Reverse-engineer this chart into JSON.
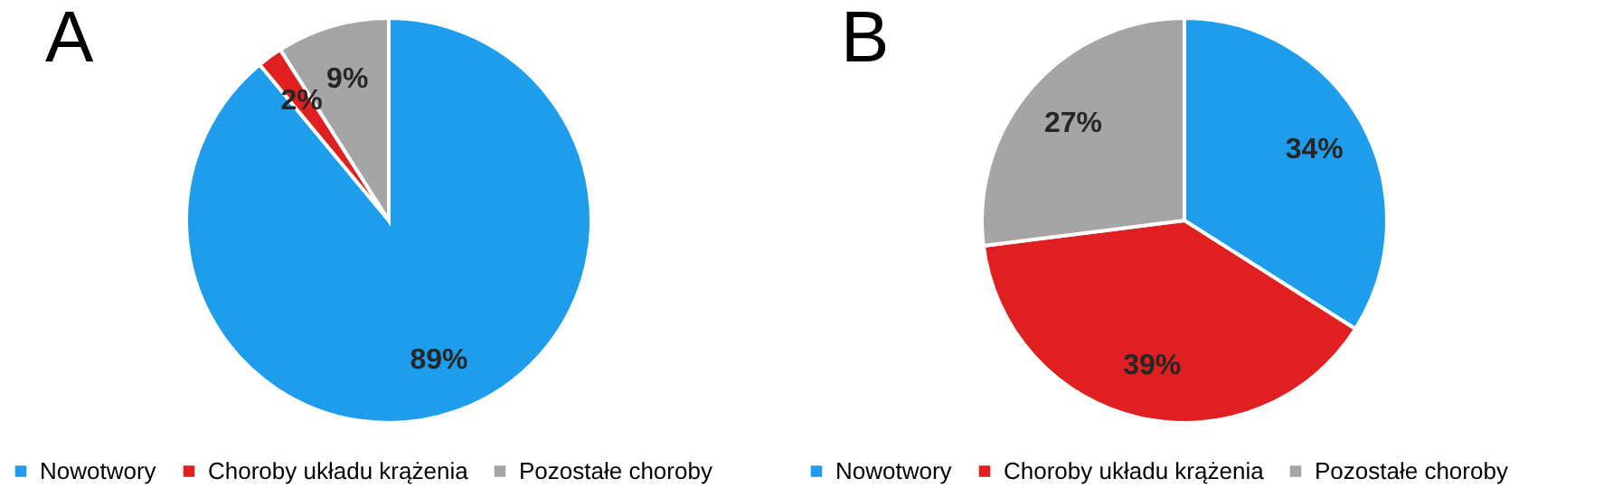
{
  "chart_data": [
    {
      "type": "pie",
      "title": "A",
      "categories": [
        "Nowotwory",
        "Choroby układu krążenia",
        "Pozostałe choroby"
      ],
      "values": [
        89,
        2,
        9
      ],
      "colors": [
        "#1f9ded",
        "#e02020",
        "#a5a5a5"
      ],
      "value_labels": [
        "89%",
        "2%",
        "9%"
      ],
      "legend": "bottom"
    },
    {
      "type": "pie",
      "title": "B",
      "categories": [
        "Nowotwory",
        "Choroby układu krążenia",
        "Pozostałe choroby"
      ],
      "values": [
        34,
        39,
        27
      ],
      "colors": [
        "#1f9ded",
        "#e02020",
        "#a5a5a5"
      ],
      "value_labels": [
        "34%",
        "39%",
        "27%"
      ],
      "legend": "bottom"
    }
  ]
}
